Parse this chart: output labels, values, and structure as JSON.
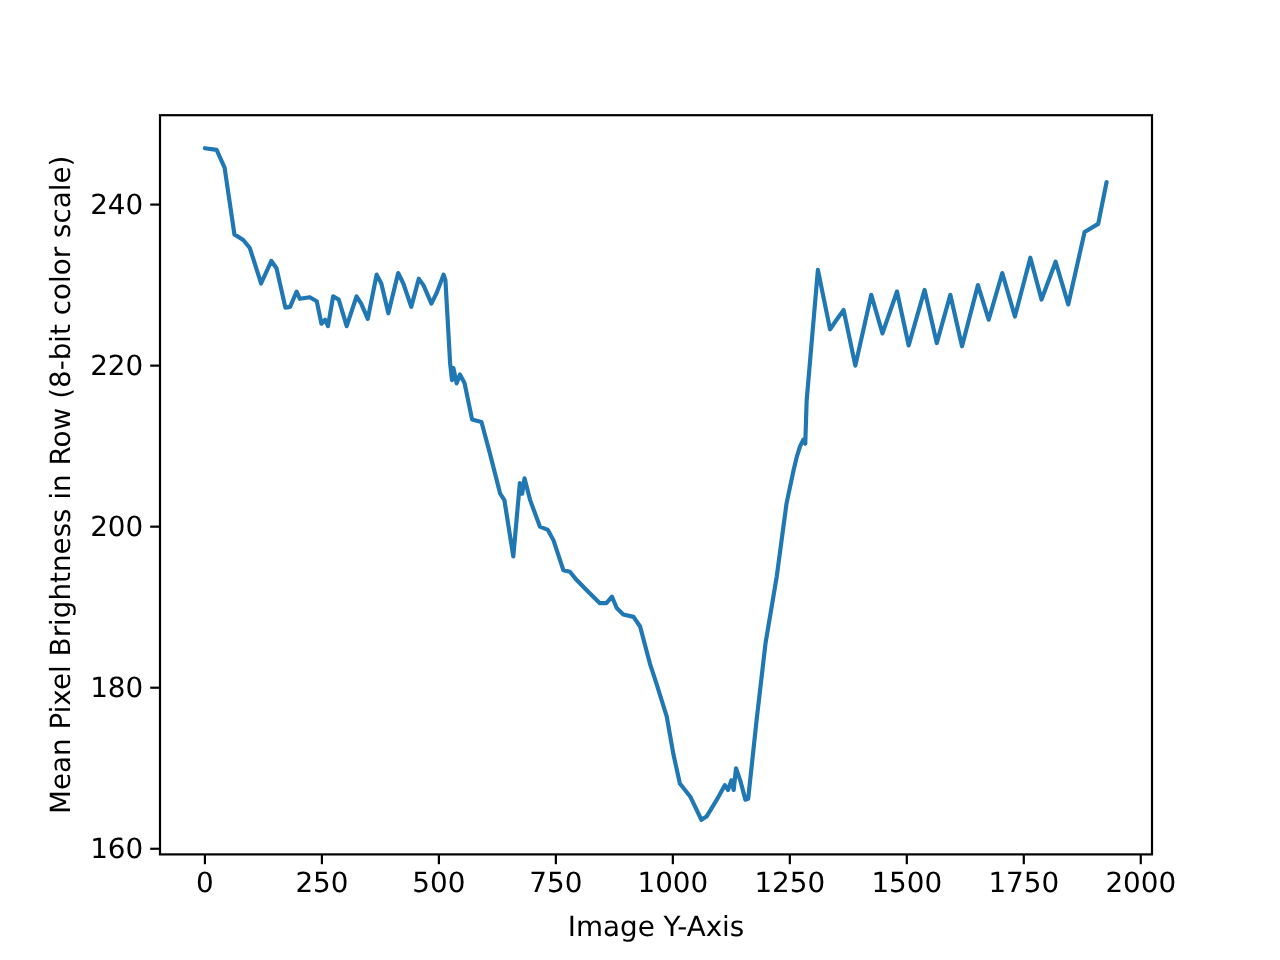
{
  "chart_data": {
    "type": "line",
    "xlabel": "Image Y-Axis",
    "ylabel": "Mean Pixel Brightness in Row (8-bit color scale)",
    "color": "#1f77b4",
    "x": [
      0,
      25,
      42,
      63,
      82,
      96,
      120,
      142,
      153,
      172,
      182,
      196,
      203,
      224,
      239,
      249,
      257,
      263,
      274,
      286,
      303,
      324,
      334,
      348,
      367,
      377,
      392,
      413,
      424,
      441,
      457,
      467,
      484,
      495,
      510,
      514,
      524,
      528,
      531,
      538,
      545,
      555,
      571,
      591,
      609,
      631,
      640,
      659,
      673,
      678,
      683,
      695,
      716,
      733,
      745,
      766,
      780,
      794,
      816,
      844,
      858,
      870,
      880,
      894,
      916,
      930,
      951,
      965,
      987,
      1001,
      1015,
      1037,
      1061,
      1072,
      1094,
      1111,
      1118,
      1125,
      1130,
      1135,
      1144,
      1155,
      1161,
      1179,
      1198,
      1222,
      1243,
      1258,
      1265,
      1272,
      1279,
      1283,
      1286,
      1310,
      1336,
      1350,
      1365,
      1390,
      1424,
      1448,
      1479,
      1504,
      1538,
      1564,
      1593,
      1618,
      1652,
      1675,
      1704,
      1731,
      1764,
      1788,
      1818,
      1845,
      1880,
      1909,
      1927
    ],
    "values": [
      247.0,
      246.8,
      244.6,
      236.3,
      235.6,
      234.6,
      230.2,
      233.0,
      232.1,
      227.2,
      227.3,
      229.2,
      228.3,
      228.5,
      228.0,
      225.2,
      225.7,
      224.9,
      228.6,
      228.2,
      224.9,
      228.6,
      227.7,
      225.8,
      231.3,
      230.2,
      226.5,
      231.5,
      230.2,
      227.3,
      230.8,
      230.0,
      227.7,
      229.0,
      231.3,
      230.6,
      220.3,
      218.2,
      219.7,
      217.8,
      218.9,
      217.8,
      213.3,
      213.0,
      209.1,
      204.1,
      203.3,
      196.3,
      205.4,
      204.1,
      206.0,
      203.3,
      200.0,
      199.6,
      198.3,
      194.6,
      194.4,
      193.4,
      192.1,
      190.5,
      190.5,
      191.3,
      189.9,
      189.1,
      188.8,
      187.6,
      183.0,
      180.5,
      176.4,
      171.8,
      168.1,
      166.5,
      163.6,
      164.0,
      166.1,
      167.9,
      167.3,
      168.5,
      167.3,
      170.0,
      168.5,
      166.1,
      166.2,
      176.0,
      185.5,
      193.8,
      202.9,
      207.0,
      208.7,
      210.0,
      210.8,
      210.3,
      215.7,
      231.9,
      224.5,
      225.7,
      226.9,
      220.0,
      228.8,
      224.0,
      229.2,
      222.5,
      229.4,
      222.8,
      228.8,
      222.4,
      230.0,
      225.7,
      231.5,
      226.1,
      233.4,
      228.2,
      232.9,
      227.6,
      236.6,
      237.6,
      242.8
    ],
    "xlim": [
      -96,
      2024
    ],
    "ylim": [
      159.3,
      251.1
    ],
    "xticks": [
      0,
      250,
      500,
      750,
      1000,
      1250,
      1500,
      1750,
      2000
    ],
    "yticks": [
      160,
      180,
      200,
      220,
      240
    ]
  }
}
